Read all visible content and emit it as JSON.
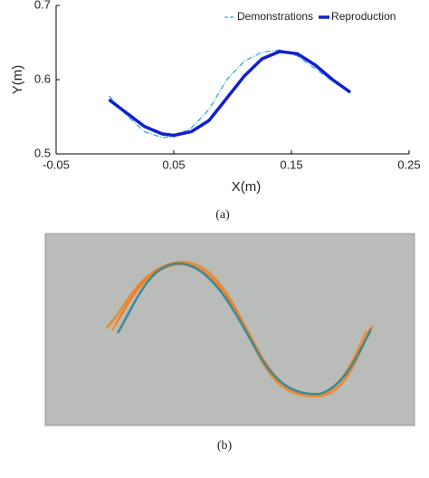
{
  "chart_data": {
    "type": "line",
    "xlabel": "X(m)",
    "ylabel": "Y(m)",
    "xlim": [
      -0.05,
      0.25
    ],
    "xticks": [
      -0.05,
      0.05,
      0.15,
      0.25
    ],
    "ylim": [
      0.5,
      0.7
    ],
    "yticks": [
      0.5,
      0.6,
      0.7
    ],
    "legend": "upper right",
    "x": [
      -0.005,
      0.01,
      0.025,
      0.04,
      0.05,
      0.065,
      0.08,
      0.095,
      0.11,
      0.125,
      0.14,
      0.155,
      0.17,
      0.185,
      0.2
    ],
    "series": [
      {
        "name": "Demonstrations",
        "color": "#33a8e0",
        "style": "dashed",
        "values": [
          0.578,
          0.552,
          0.53,
          0.522,
          0.523,
          0.535,
          0.56,
          0.6,
          0.625,
          0.637,
          0.64,
          0.632,
          0.615,
          0.598,
          0.582
        ]
      },
      {
        "name": "Reproduction",
        "color": "#1020d0",
        "style": "solid",
        "values": [
          0.573,
          0.555,
          0.537,
          0.527,
          0.525,
          0.53,
          0.545,
          0.575,
          0.605,
          0.628,
          0.638,
          0.635,
          0.62,
          0.6,
          0.583
        ]
      }
    ]
  },
  "captions": {
    "a": "(a)",
    "b": "(b)"
  }
}
